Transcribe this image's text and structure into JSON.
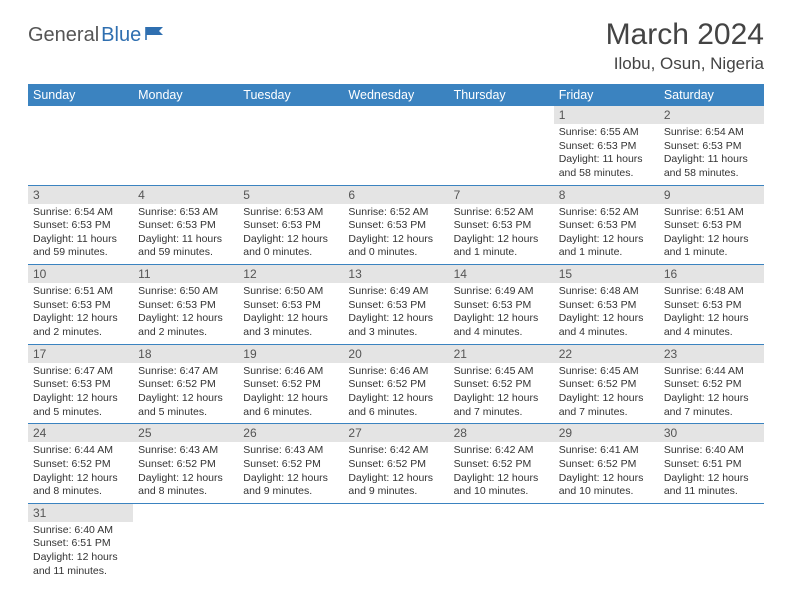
{
  "logo": {
    "general": "General",
    "blue": "Blue"
  },
  "title": "March 2024",
  "location": "Ilobu, Osun, Nigeria",
  "colors": {
    "header_bg": "#3b83c0",
    "header_fg": "#ffffff",
    "daynum_bg": "#e4e4e4",
    "border": "#3b83c0",
    "flag": "#2f6fb0"
  },
  "weekdays": [
    "Sunday",
    "Monday",
    "Tuesday",
    "Wednesday",
    "Thursday",
    "Friday",
    "Saturday"
  ],
  "weeks": [
    [
      null,
      null,
      null,
      null,
      null,
      {
        "n": "1",
        "sr": "Sunrise: 6:55 AM",
        "ss": "Sunset: 6:53 PM",
        "dl": "Daylight: 11 hours and 58 minutes."
      },
      {
        "n": "2",
        "sr": "Sunrise: 6:54 AM",
        "ss": "Sunset: 6:53 PM",
        "dl": "Daylight: 11 hours and 58 minutes."
      }
    ],
    [
      {
        "n": "3",
        "sr": "Sunrise: 6:54 AM",
        "ss": "Sunset: 6:53 PM",
        "dl": "Daylight: 11 hours and 59 minutes."
      },
      {
        "n": "4",
        "sr": "Sunrise: 6:53 AM",
        "ss": "Sunset: 6:53 PM",
        "dl": "Daylight: 11 hours and 59 minutes."
      },
      {
        "n": "5",
        "sr": "Sunrise: 6:53 AM",
        "ss": "Sunset: 6:53 PM",
        "dl": "Daylight: 12 hours and 0 minutes."
      },
      {
        "n": "6",
        "sr": "Sunrise: 6:52 AM",
        "ss": "Sunset: 6:53 PM",
        "dl": "Daylight: 12 hours and 0 minutes."
      },
      {
        "n": "7",
        "sr": "Sunrise: 6:52 AM",
        "ss": "Sunset: 6:53 PM",
        "dl": "Daylight: 12 hours and 1 minute."
      },
      {
        "n": "8",
        "sr": "Sunrise: 6:52 AM",
        "ss": "Sunset: 6:53 PM",
        "dl": "Daylight: 12 hours and 1 minute."
      },
      {
        "n": "9",
        "sr": "Sunrise: 6:51 AM",
        "ss": "Sunset: 6:53 PM",
        "dl": "Daylight: 12 hours and 1 minute."
      }
    ],
    [
      {
        "n": "10",
        "sr": "Sunrise: 6:51 AM",
        "ss": "Sunset: 6:53 PM",
        "dl": "Daylight: 12 hours and 2 minutes."
      },
      {
        "n": "11",
        "sr": "Sunrise: 6:50 AM",
        "ss": "Sunset: 6:53 PM",
        "dl": "Daylight: 12 hours and 2 minutes."
      },
      {
        "n": "12",
        "sr": "Sunrise: 6:50 AM",
        "ss": "Sunset: 6:53 PM",
        "dl": "Daylight: 12 hours and 3 minutes."
      },
      {
        "n": "13",
        "sr": "Sunrise: 6:49 AM",
        "ss": "Sunset: 6:53 PM",
        "dl": "Daylight: 12 hours and 3 minutes."
      },
      {
        "n": "14",
        "sr": "Sunrise: 6:49 AM",
        "ss": "Sunset: 6:53 PM",
        "dl": "Daylight: 12 hours and 4 minutes."
      },
      {
        "n": "15",
        "sr": "Sunrise: 6:48 AM",
        "ss": "Sunset: 6:53 PM",
        "dl": "Daylight: 12 hours and 4 minutes."
      },
      {
        "n": "16",
        "sr": "Sunrise: 6:48 AM",
        "ss": "Sunset: 6:53 PM",
        "dl": "Daylight: 12 hours and 4 minutes."
      }
    ],
    [
      {
        "n": "17",
        "sr": "Sunrise: 6:47 AM",
        "ss": "Sunset: 6:53 PM",
        "dl": "Daylight: 12 hours and 5 minutes."
      },
      {
        "n": "18",
        "sr": "Sunrise: 6:47 AM",
        "ss": "Sunset: 6:52 PM",
        "dl": "Daylight: 12 hours and 5 minutes."
      },
      {
        "n": "19",
        "sr": "Sunrise: 6:46 AM",
        "ss": "Sunset: 6:52 PM",
        "dl": "Daylight: 12 hours and 6 minutes."
      },
      {
        "n": "20",
        "sr": "Sunrise: 6:46 AM",
        "ss": "Sunset: 6:52 PM",
        "dl": "Daylight: 12 hours and 6 minutes."
      },
      {
        "n": "21",
        "sr": "Sunrise: 6:45 AM",
        "ss": "Sunset: 6:52 PM",
        "dl": "Daylight: 12 hours and 7 minutes."
      },
      {
        "n": "22",
        "sr": "Sunrise: 6:45 AM",
        "ss": "Sunset: 6:52 PM",
        "dl": "Daylight: 12 hours and 7 minutes."
      },
      {
        "n": "23",
        "sr": "Sunrise: 6:44 AM",
        "ss": "Sunset: 6:52 PM",
        "dl": "Daylight: 12 hours and 7 minutes."
      }
    ],
    [
      {
        "n": "24",
        "sr": "Sunrise: 6:44 AM",
        "ss": "Sunset: 6:52 PM",
        "dl": "Daylight: 12 hours and 8 minutes."
      },
      {
        "n": "25",
        "sr": "Sunrise: 6:43 AM",
        "ss": "Sunset: 6:52 PM",
        "dl": "Daylight: 12 hours and 8 minutes."
      },
      {
        "n": "26",
        "sr": "Sunrise: 6:43 AM",
        "ss": "Sunset: 6:52 PM",
        "dl": "Daylight: 12 hours and 9 minutes."
      },
      {
        "n": "27",
        "sr": "Sunrise: 6:42 AM",
        "ss": "Sunset: 6:52 PM",
        "dl": "Daylight: 12 hours and 9 minutes."
      },
      {
        "n": "28",
        "sr": "Sunrise: 6:42 AM",
        "ss": "Sunset: 6:52 PM",
        "dl": "Daylight: 12 hours and 10 minutes."
      },
      {
        "n": "29",
        "sr": "Sunrise: 6:41 AM",
        "ss": "Sunset: 6:52 PM",
        "dl": "Daylight: 12 hours and 10 minutes."
      },
      {
        "n": "30",
        "sr": "Sunrise: 6:40 AM",
        "ss": "Sunset: 6:51 PM",
        "dl": "Daylight: 12 hours and 11 minutes."
      }
    ],
    [
      {
        "n": "31",
        "sr": "Sunrise: 6:40 AM",
        "ss": "Sunset: 6:51 PM",
        "dl": "Daylight: 12 hours and 11 minutes."
      },
      null,
      null,
      null,
      null,
      null,
      null
    ]
  ]
}
